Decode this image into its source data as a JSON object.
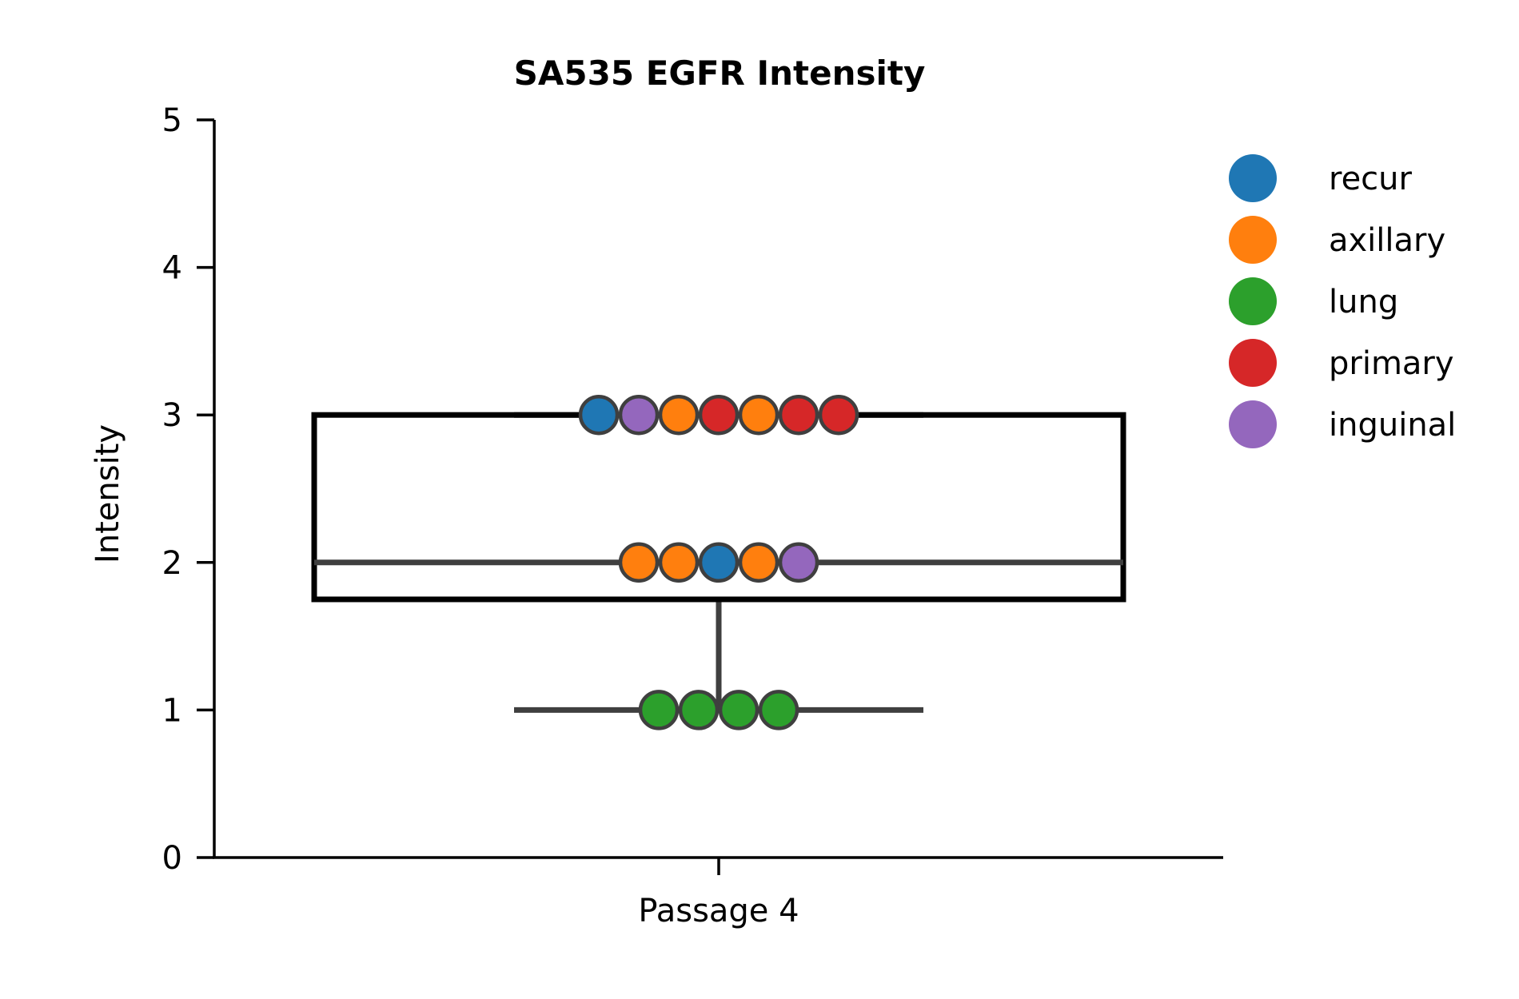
{
  "chart_data": {
    "type": "box",
    "title": "SA535 EGFR Intensity",
    "xlabel": "",
    "ylabel": "Intensity",
    "ylim": [
      0,
      5
    ],
    "yticks": [
      0,
      1,
      2,
      3,
      4,
      5
    ],
    "categories": [
      "Passage 4"
    ],
    "grid": false,
    "legend_position": "right",
    "box": {
      "category": "Passage 4",
      "q1": 1.75,
      "median": 2,
      "q3": 3,
      "whisker_low": 1,
      "whisker_high": 3,
      "box_color": "#000000",
      "line_color": "#3f3f3f"
    },
    "series": [
      {
        "name": "recur",
        "color": "#1f77b4"
      },
      {
        "name": "axillary",
        "color": "#ff7f0e"
      },
      {
        "name": "lung",
        "color": "#2ca02c"
      },
      {
        "name": "primary",
        "color": "#d62728"
      },
      {
        "name": "inguinal",
        "color": "#9467bd"
      }
    ],
    "points": [
      {
        "category": "Passage 4",
        "y": 3,
        "series": "recur"
      },
      {
        "category": "Passage 4",
        "y": 3,
        "series": "inguinal"
      },
      {
        "category": "Passage 4",
        "y": 3,
        "series": "axillary"
      },
      {
        "category": "Passage 4",
        "y": 3,
        "series": "primary"
      },
      {
        "category": "Passage 4",
        "y": 3,
        "series": "axillary"
      },
      {
        "category": "Passage 4",
        "y": 3,
        "series": "primary"
      },
      {
        "category": "Passage 4",
        "y": 3,
        "series": "primary"
      },
      {
        "category": "Passage 4",
        "y": 2,
        "series": "axillary"
      },
      {
        "category": "Passage 4",
        "y": 2,
        "series": "axillary"
      },
      {
        "category": "Passage 4",
        "y": 2,
        "series": "recur"
      },
      {
        "category": "Passage 4",
        "y": 2,
        "series": "axillary"
      },
      {
        "category": "Passage 4",
        "y": 2,
        "series": "inguinal"
      },
      {
        "category": "Passage 4",
        "y": 1,
        "series": "lung"
      },
      {
        "category": "Passage 4",
        "y": 1,
        "series": "lung"
      },
      {
        "category": "Passage 4",
        "y": 1,
        "series": "lung"
      },
      {
        "category": "Passage 4",
        "y": 1,
        "series": "lung"
      }
    ]
  }
}
